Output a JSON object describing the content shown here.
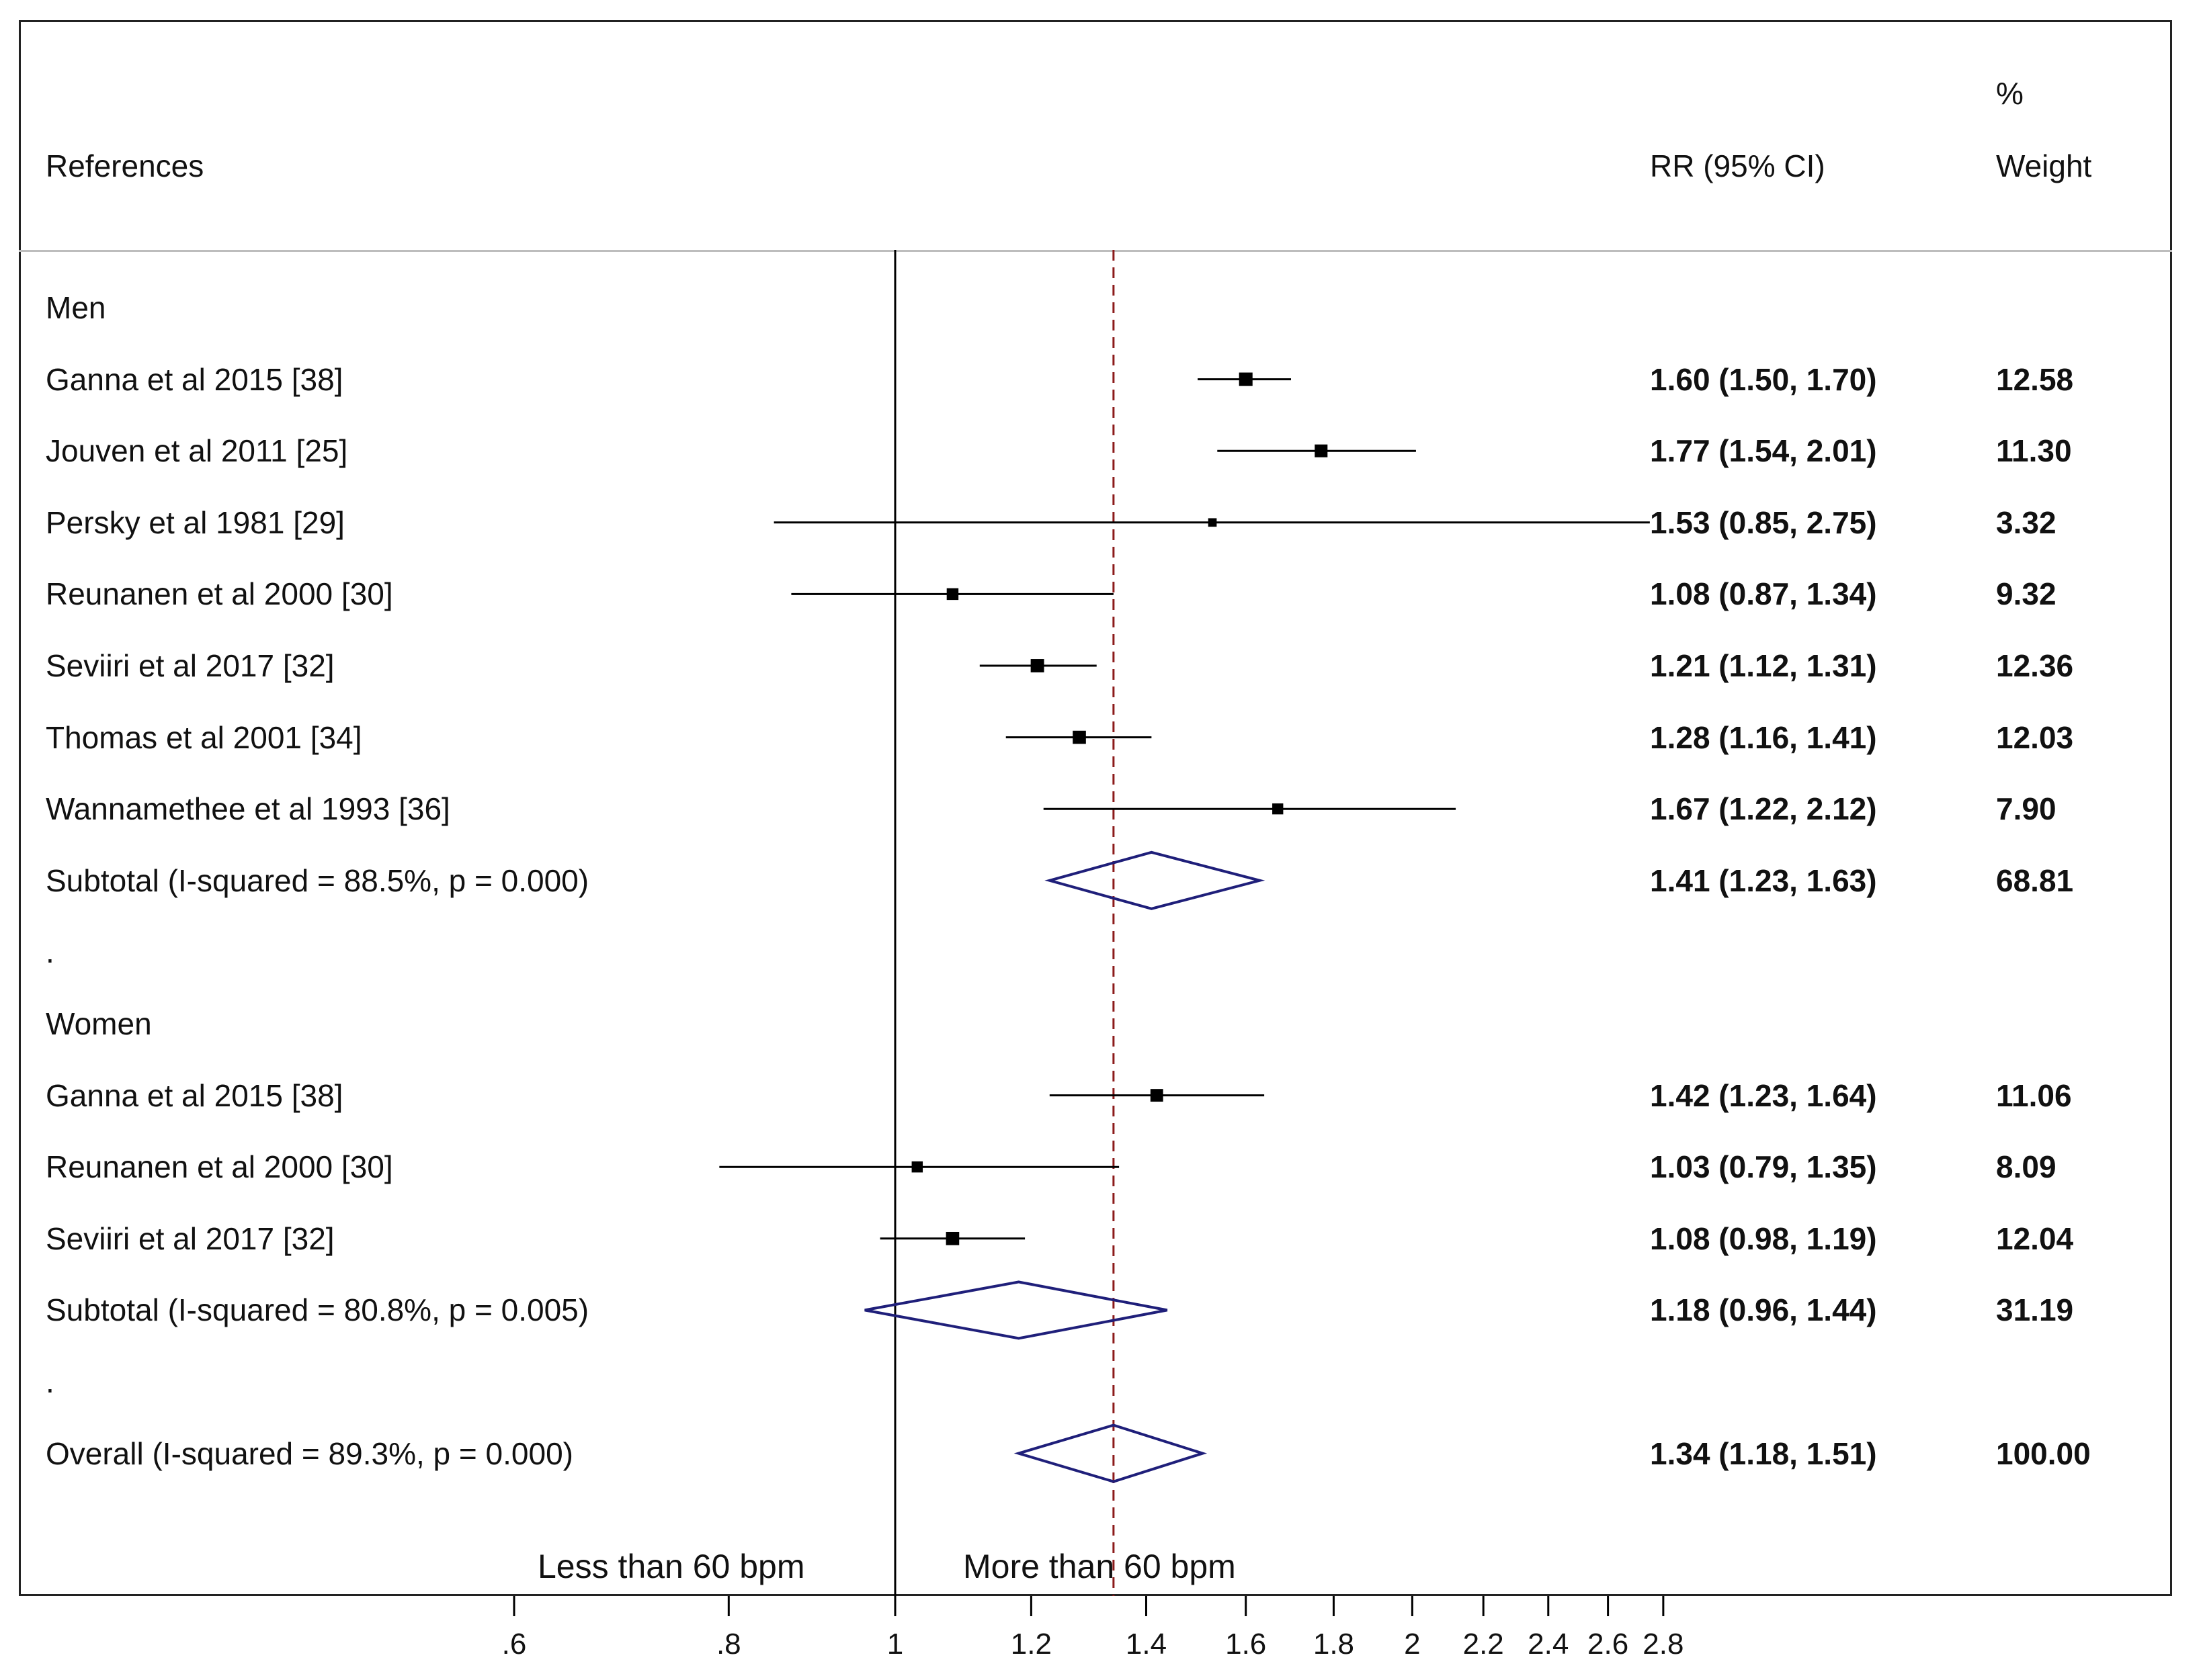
{
  "chart_data": {
    "type": "forest",
    "columns": {
      "label": "References",
      "estimate": "RR (95% CI)",
      "weight_top": "%",
      "weight_bottom": "Weight"
    },
    "x_scale": "log",
    "null_line": 1,
    "pooled_line": 1.34,
    "x_ticks": [
      {
        "value": 0.6,
        "label": ".6"
      },
      {
        "value": 0.8,
        "label": ".8"
      },
      {
        "value": 1,
        "label": "1"
      },
      {
        "value": 1.2,
        "label": "1.2"
      },
      {
        "value": 1.4,
        "label": "1.4"
      },
      {
        "value": 1.6,
        "label": "1.6"
      },
      {
        "value": 1.8,
        "label": "1.8"
      },
      {
        "value": 2,
        "label": "2"
      },
      {
        "value": 2.2,
        "label": "2.2"
      },
      {
        "value": 2.4,
        "label": "2.4"
      },
      {
        "value": 2.6,
        "label": "2.6"
      },
      {
        "value": 2.8,
        "label": "2.8"
      }
    ],
    "annotations": {
      "left": "Less than 60 bpm",
      "right": "More than 60 bpm"
    },
    "rows": [
      {
        "kind": "group",
        "label": "Men"
      },
      {
        "kind": "study",
        "label": "Ganna et al 2015 [38]",
        "rr": 1.6,
        "lo": 1.5,
        "hi": 1.7,
        "ci_text": "1.60 (1.50, 1.70)",
        "weight": "12.58"
      },
      {
        "kind": "study",
        "label": "Jouven et al 2011 [25]",
        "rr": 1.77,
        "lo": 1.54,
        "hi": 2.01,
        "ci_text": "1.77 (1.54, 2.01)",
        "weight": "11.30"
      },
      {
        "kind": "study",
        "label": "Persky et al 1981 [29]",
        "rr": 1.53,
        "lo": 0.85,
        "hi": 2.75,
        "ci_text": "1.53 (0.85, 2.75)",
        "weight": "3.32"
      },
      {
        "kind": "study",
        "label": "Reunanen et al 2000 [30]",
        "rr": 1.08,
        "lo": 0.87,
        "hi": 1.34,
        "ci_text": "1.08 (0.87, 1.34)",
        "weight": "9.32"
      },
      {
        "kind": "study",
        "label": "Seviiri et al 2017 [32]",
        "rr": 1.21,
        "lo": 1.12,
        "hi": 1.31,
        "ci_text": "1.21 (1.12, 1.31)",
        "weight": "12.36"
      },
      {
        "kind": "study",
        "label": "Thomas et al 2001 [34]",
        "rr": 1.28,
        "lo": 1.16,
        "hi": 1.41,
        "ci_text": "1.28 (1.16, 1.41)",
        "weight": "12.03"
      },
      {
        "kind": "study",
        "label": "Wannamethee et al 1993 [36]",
        "rr": 1.67,
        "lo": 1.22,
        "hi": 2.12,
        "ci_text": "1.67 (1.22, 2.12)",
        "weight": "7.90"
      },
      {
        "kind": "subtotal",
        "label": "Subtotal  (I-squared = 88.5%, p = 0.000)",
        "rr": 1.41,
        "lo": 1.23,
        "hi": 1.63,
        "ci_text": "1.41 (1.23, 1.63)",
        "weight": "68.81"
      },
      {
        "kind": "spacer",
        "label": "."
      },
      {
        "kind": "group",
        "label": "Women"
      },
      {
        "kind": "study",
        "label": "Ganna et al 2015 [38]",
        "rr": 1.42,
        "lo": 1.23,
        "hi": 1.64,
        "ci_text": "1.42 (1.23, 1.64)",
        "weight": "11.06"
      },
      {
        "kind": "study",
        "label": "Reunanen et al 2000 [30]",
        "rr": 1.03,
        "lo": 0.79,
        "hi": 1.35,
        "ci_text": "1.03 (0.79, 1.35)",
        "weight": "8.09"
      },
      {
        "kind": "study",
        "label": "Seviiri et al 2017 [32]",
        "rr": 1.08,
        "lo": 0.98,
        "hi": 1.19,
        "ci_text": "1.08 (0.98, 1.19)",
        "weight": "12.04"
      },
      {
        "kind": "subtotal",
        "label": "Subtotal  (I-squared = 80.8%, p = 0.005)",
        "rr": 1.18,
        "lo": 0.96,
        "hi": 1.44,
        "ci_text": "1.18 (0.96, 1.44)",
        "weight": "31.19"
      },
      {
        "kind": "spacer",
        "label": "."
      },
      {
        "kind": "overall",
        "label": "Overall  (I-squared = 89.3%, p = 0.000)",
        "rr": 1.34,
        "lo": 1.18,
        "hi": 1.51,
        "ci_text": "1.34 (1.18, 1.51)",
        "weight": "100.00"
      }
    ],
    "colors": {
      "diamond": "#1f1f7a",
      "pooled_line": "#8b1a1a",
      "marker": "#000000"
    }
  }
}
